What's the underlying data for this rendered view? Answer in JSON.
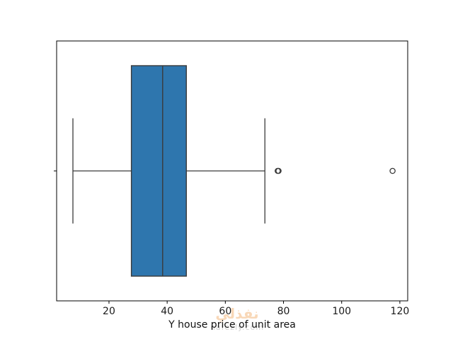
{
  "figure": {
    "background": "#ffffff"
  },
  "chart_data": {
    "type": "box",
    "orientation": "horizontal",
    "title": "",
    "xlabel": "Y house price of unit area",
    "ylabel": "",
    "x_ticks": [
      20,
      40,
      60,
      80,
      100,
      120
    ],
    "xlim": [
      2.0,
      122.7
    ],
    "grid": false,
    "legend": null,
    "series": [
      {
        "name": "Y house price of unit area",
        "whisker_low": 7.6,
        "q1": 27.7,
        "median": 38.45,
        "q3": 46.6,
        "whisker_high": 73.6,
        "outliers": [
          78.0,
          78.3,
          117.5
        ]
      }
    ],
    "colors": {
      "box_fill": "#2e76ae",
      "box_edge": "#3a3a3a",
      "whisker": "#3a3a3a",
      "outlier_edge": "#3a3a3a",
      "axis": "#000000",
      "tick_label": "#1a1a1a"
    }
  },
  "watermark": {
    "arabic": "نفذلي",
    "domain": "nafezly.com",
    "arabic_color": "#f0a050",
    "domain_color": "#9a9a9a"
  }
}
